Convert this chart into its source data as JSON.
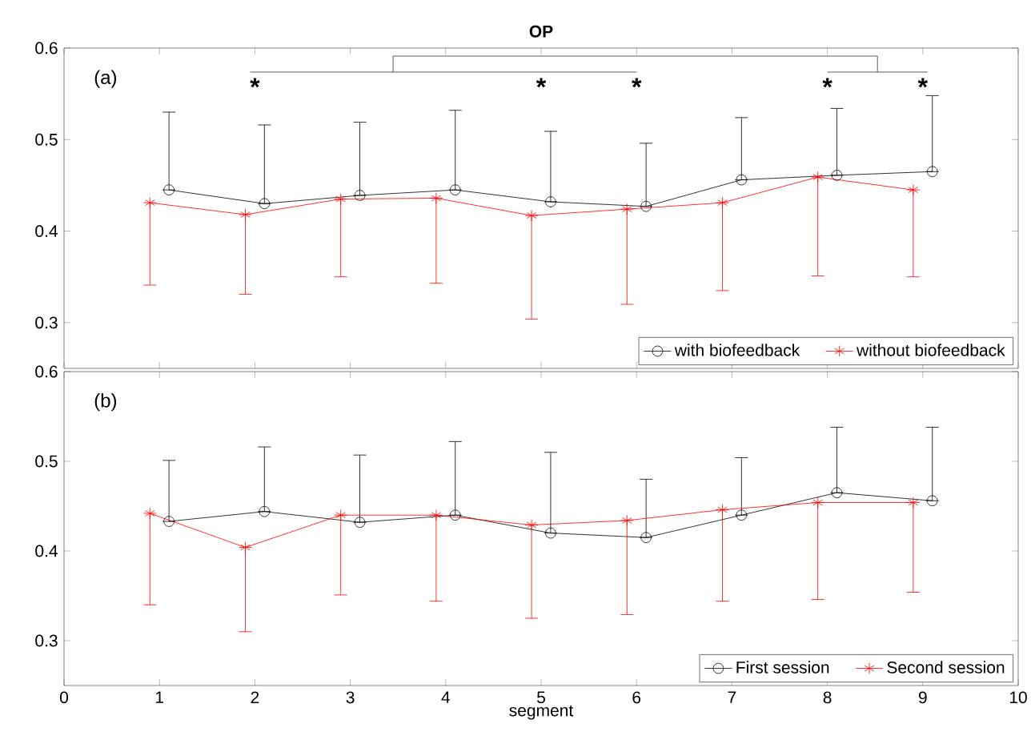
{
  "chart_data": [
    {
      "type": "line",
      "title": "OP",
      "xlim": [
        0,
        10
      ],
      "xticks": [
        0,
        1,
        2,
        3,
        4,
        5,
        6,
        7,
        8,
        9,
        10
      ],
      "ylim": [
        0.25,
        0.6
      ],
      "yticks": [
        0.3,
        0.4,
        0.5,
        0.6
      ],
      "tick_labels": "y",
      "legend": "bottom right",
      "grid": false,
      "annotations": [
        "(a)",
        "*",
        "*",
        "*",
        "*",
        "*"
      ],
      "series": [
        {
          "name": "with biofeedback",
          "color": "#000000",
          "marker": "circle",
          "x": [
            1.1,
            2.1,
            3.1,
            4.1,
            5.1,
            6.1,
            7.1,
            8.1,
            9.1
          ],
          "values": [
            0.445,
            0.43,
            0.439,
            0.445,
            0.432,
            0.427,
            0.456,
            0.461,
            0.465
          ],
          "errors": [
            [
              0.445,
              0.53
            ],
            [
              0.43,
              0.516
            ],
            [
              0.439,
              0.519
            ],
            [
              0.445,
              0.532
            ],
            [
              0.432,
              0.509
            ],
            [
              0.427,
              0.496
            ],
            [
              0.456,
              0.524
            ],
            [
              0.461,
              0.534
            ],
            [
              0.465,
              0.548
            ]
          ]
        },
        {
          "name": "without biofeedback",
          "color": "#ff0000",
          "marker": "cross",
          "x": [
            0.9,
            1.9,
            2.9,
            3.9,
            4.9,
            5.9,
            6.9,
            7.9,
            8.9
          ],
          "values": [
            0.431,
            0.418,
            0.435,
            0.436,
            0.417,
            0.424,
            0.431,
            0.459,
            0.445
          ],
          "errors": [
            [
              0.341,
              0.431
            ],
            [
              0.331,
              0.418
            ],
            [
              0.35,
              0.435
            ],
            [
              0.343,
              0.436
            ],
            [
              0.304,
              0.417
            ],
            [
              0.32,
              0.424
            ],
            [
              0.335,
              0.431
            ],
            [
              0.351,
              0.459
            ],
            [
              0.35,
              0.445
            ]
          ]
        }
      ]
    },
    {
      "type": "line",
      "xlabel": "segment",
      "xlim": [
        0,
        10
      ],
      "xticks": [
        0,
        1,
        2,
        3,
        4,
        5,
        6,
        7,
        8,
        9,
        10
      ],
      "ylim": [
        0.25,
        0.6
      ],
      "yticks": [
        0.3,
        0.4,
        0.5,
        0.6
      ],
      "legend": "bottom right",
      "grid": false,
      "annotations": [
        "(b)"
      ],
      "series": [
        {
          "name": "First session",
          "color": "#000000",
          "marker": "circle",
          "x": [
            1.1,
            2.1,
            3.1,
            4.1,
            5.1,
            6.1,
            7.1,
            8.1,
            9.1
          ],
          "values": [
            0.433,
            0.444,
            0.432,
            0.44,
            0.42,
            0.415,
            0.44,
            0.465,
            0.456
          ],
          "errors": [
            [
              0.433,
              0.501
            ],
            [
              0.444,
              0.516
            ],
            [
              0.432,
              0.507
            ],
            [
              0.44,
              0.522
            ],
            [
              0.42,
              0.51
            ],
            [
              0.415,
              0.48
            ],
            [
              0.44,
              0.504
            ],
            [
              0.465,
              0.538
            ],
            [
              0.456,
              0.538
            ]
          ]
        },
        {
          "name": "Second session",
          "color": "#ff0000",
          "marker": "cross",
          "x": [
            0.9,
            1.9,
            2.9,
            3.9,
            4.9,
            5.9,
            6.9,
            7.9,
            8.9
          ],
          "values": [
            0.442,
            0.404,
            0.44,
            0.44,
            0.429,
            0.434,
            0.446,
            0.454,
            0.454
          ],
          "errors": [
            [
              0.34,
              0.442
            ],
            [
              0.31,
              0.404
            ],
            [
              0.351,
              0.44
            ],
            [
              0.344,
              0.44
            ],
            [
              0.325,
              0.429
            ],
            [
              0.329,
              0.434
            ],
            [
              0.344,
              0.446
            ],
            [
              0.346,
              0.454
            ],
            [
              0.354,
              0.454
            ]
          ]
        }
      ]
    }
  ]
}
